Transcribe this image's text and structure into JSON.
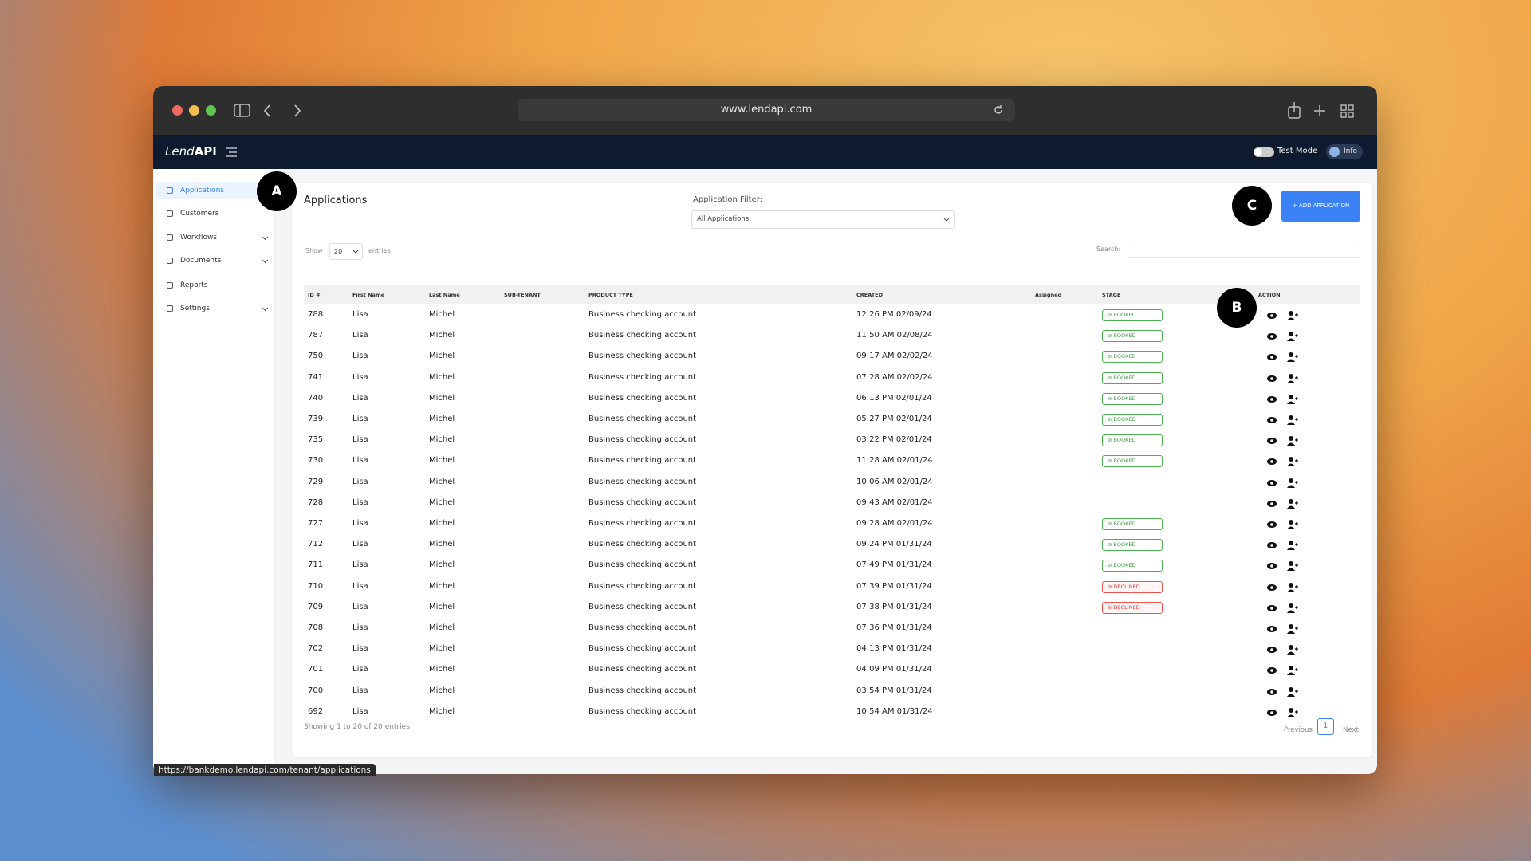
{
  "browser": {
    "url": "www.lendapi.com",
    "status_url": "https://bankdemo.lendapi.com/tenant/applications"
  },
  "header": {
    "logo_light": "Lend",
    "logo_bold": "API",
    "test_mode": "Test Mode",
    "info": "Info"
  },
  "sidebar": [
    {
      "label": "Applications",
      "active": true
    },
    {
      "label": "Customers"
    },
    {
      "label": "Workflows",
      "expandable": true
    },
    {
      "label": "Documents",
      "expandable": true
    },
    {
      "label": "Reports"
    },
    {
      "label": "Settings",
      "expandable": true
    }
  ],
  "page": {
    "title": "Applications",
    "filter_label": "Application Filter:",
    "filter_value": "All Applications",
    "add_button": "+ ADD APPLICATION",
    "show": "Show",
    "entries_value": "20",
    "entries": "entries",
    "search_label": "Search:",
    "showing": "Showing 1 to 20 of 20 entries",
    "previous": "Previous",
    "page_number": "1",
    "next": "Next"
  },
  "table": {
    "columns": [
      "ID #",
      "First Name",
      "Last Name",
      "SUB-TENANT",
      "PRODUCT TYPE",
      "CREATED",
      "Assigned",
      "STAGE",
      "ACTION"
    ],
    "rows": [
      {
        "id": "788",
        "first": "Lisa",
        "last": "Michel",
        "product": "Business checking account",
        "created": "12:26 PM 02/09/24",
        "stage": "BOOKED"
      },
      {
        "id": "787",
        "first": "Lisa",
        "last": "Michel",
        "product": "Business checking account",
        "created": "11:50 AM 02/08/24",
        "stage": "BOOKED"
      },
      {
        "id": "750",
        "first": "Lisa",
        "last": "Michel",
        "product": "Business checking account",
        "created": "09:17 AM 02/02/24",
        "stage": "BOOKED"
      },
      {
        "id": "741",
        "first": "Lisa",
        "last": "Michel",
        "product": "Business checking account",
        "created": "07:28 AM 02/02/24",
        "stage": "BOOKED"
      },
      {
        "id": "740",
        "first": "Lisa",
        "last": "Michel",
        "product": "Business checking account",
        "created": "06:13 PM 02/01/24",
        "stage": "BOOKED"
      },
      {
        "id": "739",
        "first": "Lisa",
        "last": "Michel",
        "product": "Business checking account",
        "created": "05:27 PM 02/01/24",
        "stage": "BOOKED"
      },
      {
        "id": "735",
        "first": "Lisa",
        "last": "Michel",
        "product": "Business checking account",
        "created": "03:22 PM 02/01/24",
        "stage": "BOOKED"
      },
      {
        "id": "730",
        "first": "Lisa",
        "last": "Michel",
        "product": "Business checking account",
        "created": "11:28 AM 02/01/24",
        "stage": "BOOKED"
      },
      {
        "id": "729",
        "first": "Lisa",
        "last": "Michel",
        "product": "Business checking account",
        "created": "10:06 AM 02/01/24"
      },
      {
        "id": "728",
        "first": "Lisa",
        "last": "Michel",
        "product": "Business checking account",
        "created": "09:43 AM 02/01/24"
      },
      {
        "id": "727",
        "first": "Lisa",
        "last": "Michel",
        "product": "Business checking account",
        "created": "09:28 AM 02/01/24",
        "stage": "BOOKED"
      },
      {
        "id": "712",
        "first": "Lisa",
        "last": "Michel",
        "product": "Business checking account",
        "created": "09:24 PM 01/31/24",
        "stage": "BOOKED"
      },
      {
        "id": "711",
        "first": "Lisa",
        "last": "Michel",
        "product": "Business checking account",
        "created": "07:49 PM 01/31/24",
        "stage": "BOOKED"
      },
      {
        "id": "710",
        "first": "Lisa",
        "last": "Michel",
        "product": "Business checking account",
        "created": "07:39 PM 01/31/24",
        "stage": "DECLINED"
      },
      {
        "id": "709",
        "first": "Lisa",
        "last": "Michel",
        "product": "Business checking account",
        "created": "07:38 PM 01/31/24",
        "stage": "DECLINED"
      },
      {
        "id": "708",
        "first": "Lisa",
        "last": "Michel",
        "product": "Business checking account",
        "created": "07:36 PM 01/31/24"
      },
      {
        "id": "702",
        "first": "Lisa",
        "last": "Michel",
        "product": "Business checking account",
        "created": "04:13 PM 01/31/24"
      },
      {
        "id": "701",
        "first": "Lisa",
        "last": "Michel",
        "product": "Business checking account",
        "created": "04:09 PM 01/31/24"
      },
      {
        "id": "700",
        "first": "Lisa",
        "last": "Michel",
        "product": "Business checking account",
        "created": "03:54 PM 01/31/24"
      },
      {
        "id": "692",
        "first": "Lisa",
        "last": "Michel",
        "product": "Business checking account",
        "created": "10:54 AM 01/31/24"
      }
    ]
  },
  "annotations": [
    "A",
    "B",
    "C"
  ]
}
